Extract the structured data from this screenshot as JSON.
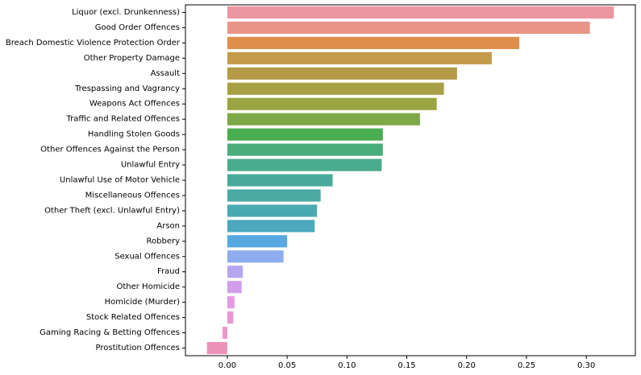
{
  "chart_data": {
    "type": "bar",
    "orientation": "horizontal",
    "title": "",
    "xlabel": "",
    "ylabel": "",
    "xlim": [
      -0.035,
      0.341
    ],
    "xticks": [
      0.0,
      0.05,
      0.1,
      0.15,
      0.2,
      0.25,
      0.3
    ],
    "xtick_labels": [
      "0.00",
      "0.05",
      "0.10",
      "0.15",
      "0.20",
      "0.25",
      "0.30"
    ],
    "grid": false,
    "categories": [
      "Liquor (excl. Drunkenness)",
      "Good Order Offences",
      "Breach Domestic Violence Protection Order",
      "Other Property Damage",
      "Assault",
      "Trespassing and Vagrancy",
      "Weapons Act Offences",
      "Traffic and Related Offences",
      "Handling Stolen Goods",
      "Other Offences Against the Person",
      "Unlawful Entry",
      "Unlawful Use of Motor Vehicle",
      "Miscellaneous Offences",
      "Other Theft (excl. Unlawful Entry)",
      "Arson",
      "Robbery",
      "Sexual Offences",
      "Fraud",
      "Other Homicide",
      "Homicide (Murder)",
      "Stock Related Offences",
      "Gaming Racing & Betting Offences",
      "Prostitution Offences"
    ],
    "values": [
      0.323,
      0.303,
      0.244,
      0.221,
      0.192,
      0.181,
      0.175,
      0.161,
      0.13,
      0.13,
      0.129,
      0.088,
      0.078,
      0.075,
      0.073,
      0.05,
      0.047,
      0.013,
      0.012,
      0.006,
      0.005,
      -0.004,
      -0.017
    ],
    "colors": [
      "#eb96a0",
      "#e89588",
      "#e08f4a",
      "#c49a4b",
      "#b59b48",
      "#a8a044",
      "#9ba541",
      "#7ea948",
      "#4aad4f",
      "#4aae7a",
      "#49ac8c",
      "#4aaa99",
      "#4aaaa4",
      "#4ba9b1",
      "#4ca8bd",
      "#57a7e1",
      "#8fadec",
      "#b6a6ee",
      "#d29de9",
      "#e59ae4",
      "#ea96d6",
      "#ec97c8",
      "#ec91b8"
    ]
  }
}
